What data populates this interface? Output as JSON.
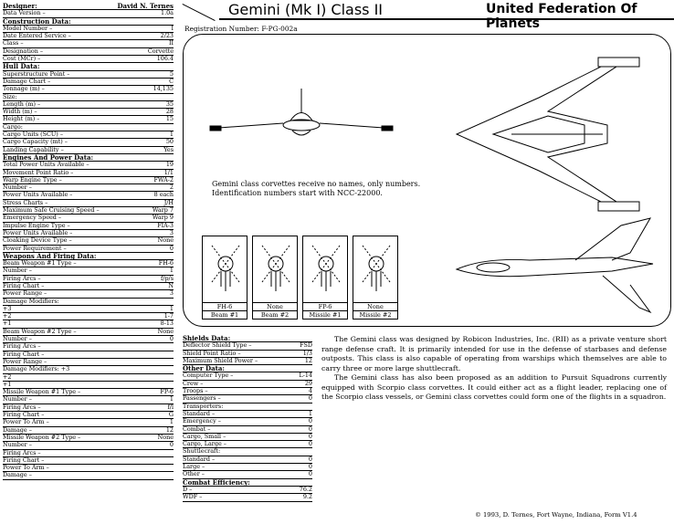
{
  "header": {
    "title": "Gemini (Mk I) Class II",
    "org": "United Federation Of Planets",
    "registration": "Registration Number: F-PG-002a"
  },
  "left_rows": [
    {
      "l": "Designer:",
      "v": "David N. Ternes",
      "h": true
    },
    {
      "l": "Data Version –",
      "v": "1.0a"
    },
    {
      "l": "Construction Data:",
      "v": "",
      "h": true
    },
    {
      "l": "Model Number –",
      "v": "I"
    },
    {
      "l": "Date Entered Service –",
      "v": "2/23"
    },
    {
      "l": "Class –",
      "v": "II"
    },
    {
      "l": "Designation –",
      "v": "Corvette"
    },
    {
      "l": "Cost (MCr) –",
      "v": "106.4"
    },
    {
      "l": "Hull Data:",
      "v": "",
      "h": true
    },
    {
      "l": "Superstructure Point –",
      "v": "5"
    },
    {
      "l": "Damage Chart –",
      "v": "C"
    },
    {
      "l": "Tonnage (m) –",
      "v": "14,135"
    },
    {
      "l": "Size:",
      "v": ""
    },
    {
      "l": "  Length (m) –",
      "v": "35"
    },
    {
      "l": "  Width (m) –",
      "v": "28"
    },
    {
      "l": "  Height (m) –",
      "v": "15"
    },
    {
      "l": "Cargo:",
      "v": ""
    },
    {
      "l": "  Cargo Units (SCU) –",
      "v": "1"
    },
    {
      "l": "  Cargo Capacity (mt) –",
      "v": "50"
    },
    {
      "l": "Landing Capability –",
      "v": "Yes"
    },
    {
      "l": "Engines And Power Data:",
      "v": "",
      "h": true
    },
    {
      "l": "Total Power Units Available –",
      "v": "19"
    },
    {
      "l": "Movement Point Ratio –",
      "v": "1/1"
    },
    {
      "l": "Warp Engine Type –",
      "v": "FWA-2"
    },
    {
      "l": "  Number –",
      "v": "2"
    },
    {
      "l": "  Power Units Available –",
      "v": "8 each"
    },
    {
      "l": "  Stress Charts –",
      "v": "J/H"
    },
    {
      "l": "  Maximum Safe Cruising Speed –",
      "v": "Warp 7"
    },
    {
      "l": "  Emergency Speed –",
      "v": "Warp 9"
    },
    {
      "l": "Impulse Engine Type –",
      "v": "FIA-3"
    },
    {
      "l": "  Power Units Available –",
      "v": "3"
    },
    {
      "l": "Cloaking Device Type –",
      "v": "None"
    },
    {
      "l": "  Power Requirement –",
      "v": "0"
    },
    {
      "l": "Weapons And Firing Data:",
      "v": "",
      "h": true
    },
    {
      "l": "Beam Weapon #1 Type –",
      "v": "FH-6"
    },
    {
      "l": "  Number –",
      "v": "1"
    },
    {
      "l": "  Firing Arcs –",
      "v": "f/p/s"
    },
    {
      "l": "  Firing Chart –",
      "v": "N"
    },
    {
      "l": "  Power Range –",
      "v": "3"
    },
    {
      "l": "  Damage Modifiers:",
      "v": ""
    },
    {
      "l": "          +3",
      "v": "1"
    },
    {
      "l": "          +2",
      "v": "1-7"
    },
    {
      "l": "          +1",
      "v": "8-13"
    },
    {
      "l": "Beam Weapon #2 Type –",
      "v": "None"
    },
    {
      "l": "  Number –",
      "v": "0"
    },
    {
      "l": "  Firing Arcs –",
      "v": ""
    },
    {
      "l": "  Firing Chart –",
      "v": ""
    },
    {
      "l": "  Power Range –",
      "v": ""
    },
    {
      "l": "  Damage Modifiers:   +3",
      "v": ""
    },
    {
      "l": "          +2",
      "v": ""
    },
    {
      "l": "          +1",
      "v": ""
    },
    {
      "l": "Missile Weapon #1 Type –",
      "v": "FP-6"
    },
    {
      "l": "  Number –",
      "v": "1"
    },
    {
      "l": "  Firing Arcs –",
      "v": "f/l"
    },
    {
      "l": "  Firing Chart –",
      "v": "G"
    },
    {
      "l": "  Power To Arm –",
      "v": "1"
    },
    {
      "l": "  Damage –",
      "v": "12"
    },
    {
      "l": "Missile Weapon #2 Type –",
      "v": "None"
    },
    {
      "l": "  Number –",
      "v": "0"
    },
    {
      "l": "  Firing Arcs –",
      "v": ""
    },
    {
      "l": "  Firing Chart –",
      "v": ""
    },
    {
      "l": "  Power To Arm –",
      "v": ""
    },
    {
      "l": "  Damage –",
      "v": ""
    }
  ],
  "mid_rows": [
    {
      "l": "Shields Data:",
      "v": "",
      "h": true
    },
    {
      "l": "Deflector Shield Type –",
      "v": "FSD"
    },
    {
      "l": "  Shield Point Ratio –",
      "v": "1/3"
    },
    {
      "l": "  Maximum Shield Power –",
      "v": "12"
    },
    {
      "l": "Other Data:",
      "v": "",
      "h": true
    },
    {
      "l": "Computer Type –",
      "v": "L-14"
    },
    {
      "l": "Crew –",
      "v": "29"
    },
    {
      "l": "Troops –",
      "v": "4"
    },
    {
      "l": "Passengers –",
      "v": "0"
    },
    {
      "l": "Transporters:",
      "v": ""
    },
    {
      "l": "  Standard –",
      "v": "1"
    },
    {
      "l": "  Emergency –",
      "v": "0"
    },
    {
      "l": "  Combat –",
      "v": "0"
    },
    {
      "l": "  Cargo, Small –",
      "v": "0"
    },
    {
      "l": "  Cargo, Large –",
      "v": "0"
    },
    {
      "l": "Shuttlecraft:",
      "v": ""
    },
    {
      "l": "  Standard –",
      "v": "0"
    },
    {
      "l": "  Large –",
      "v": "0"
    },
    {
      "l": "  Other –",
      "v": "0"
    },
    {
      "l": "Combat Efficiency:",
      "v": "",
      "h": true
    },
    {
      "l": "D –",
      "v": "76.2"
    },
    {
      "l": "WDF –",
      "v": "9.2"
    }
  ],
  "note": {
    "line1": "Gemini class corvettes receive no names, only numbers.",
    "line2": "Identification numbers start with NCC-22000."
  },
  "arcs": [
    {
      "name": "FH-6",
      "label": "Beam #1"
    },
    {
      "name": "None",
      "label": "Beam #2"
    },
    {
      "name": "FP-6",
      "label": "Missile #1"
    },
    {
      "name": "None",
      "label": "Missile #2"
    }
  ],
  "description": [
    "The Gemini class was designed by Robicon Industries, Inc. (RII) as a private venture short range defense craft. It is primarily intended for use in the defense of starbases and defense outposts. This class is also capable of operating from warships which themselves are able to carry three or more large shuttlecraft.",
    "The Gemini class has also been proposed as an addition to Pursuit Squadrons currently equipped with Scorpio class corvettes. It could either act as a flight leader, replacing one of the Scorpio class vessels, or Gemini class corvettes could form one of the flights in a squadron."
  ],
  "copyright": "© 1993, D. Ternes, Fort Wayne, Indiana, Form V1.4"
}
